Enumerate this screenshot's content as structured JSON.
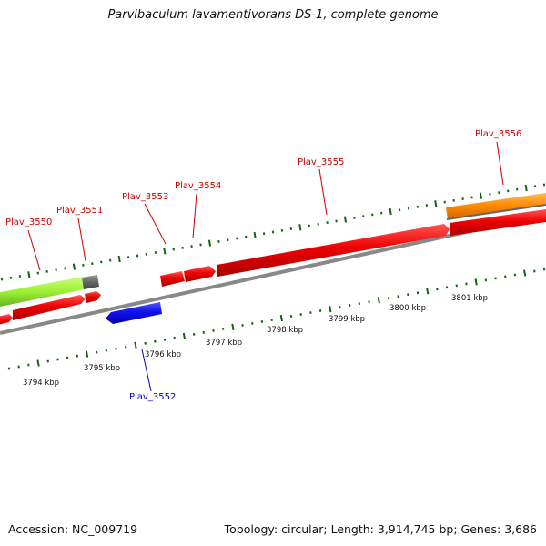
{
  "title": "Parvibaculum lavamentivorans DS-1, complete genome",
  "footer": {
    "accession": "Accession: NC_009719",
    "summary": "Topology: circular; Length: 3,914,745 bp; Genes: 3,686"
  },
  "colors": {
    "forward_cds": "#ee0000",
    "reverse_cds": "#1111ee",
    "green_feature": "#99ee33",
    "orange_feature": "#ff8800",
    "gray_feature": "#666666",
    "backbone": "#888888",
    "tick": "#116611",
    "forward_label": "#cc0000",
    "reverse_label": "#0000cc"
  },
  "scale_labels": [
    "3794 kbp",
    "3795 kbp",
    "3796 kbp",
    "3797 kbp",
    "3798 kbp",
    "3799 kbp",
    "3800 kbp",
    "3801 kbp"
  ],
  "gene_labels": [
    {
      "text": "Plav_3550",
      "strand": "forward"
    },
    {
      "text": "Plav_3551",
      "strand": "forward"
    },
    {
      "text": "Plav_3553",
      "strand": "forward"
    },
    {
      "text": "Plav_3554",
      "strand": "forward"
    },
    {
      "text": "Plav_3555",
      "strand": "forward"
    },
    {
      "text": "Plav_3556",
      "strand": "forward"
    },
    {
      "text": "Plav_3552",
      "strand": "reverse"
    }
  ]
}
